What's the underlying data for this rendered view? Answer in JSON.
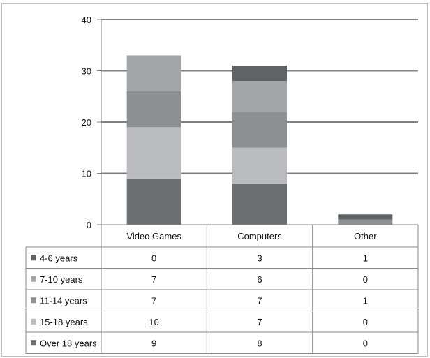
{
  "chart_data": {
    "type": "bar",
    "stacked": true,
    "categories": [
      "Video Games",
      "Computers",
      "Other"
    ],
    "series": [
      {
        "name": "Over 18 years",
        "values": [
          9,
          8,
          0
        ],
        "color": "#6b6f72"
      },
      {
        "name": "15-18 years",
        "values": [
          10,
          7,
          0
        ],
        "color": "#babcbf"
      },
      {
        "name": "11-14 years",
        "values": [
          7,
          7,
          1
        ],
        "color": "#8d9093"
      },
      {
        "name": "7-10 years",
        "values": [
          7,
          6,
          0
        ],
        "color": "#a4a7aa"
      },
      {
        "name": "4-6 years",
        "values": [
          0,
          3,
          1
        ],
        "color": "#5f6366"
      }
    ],
    "table_row_order": [
      "4-6 years",
      "7-10 years",
      "11-14 years",
      "15-18 years",
      "Over 18 years"
    ],
    "yticks": [
      0,
      10,
      20,
      30,
      40
    ],
    "ylim": [
      0,
      40
    ],
    "grid": true,
    "legend": "data-table"
  }
}
